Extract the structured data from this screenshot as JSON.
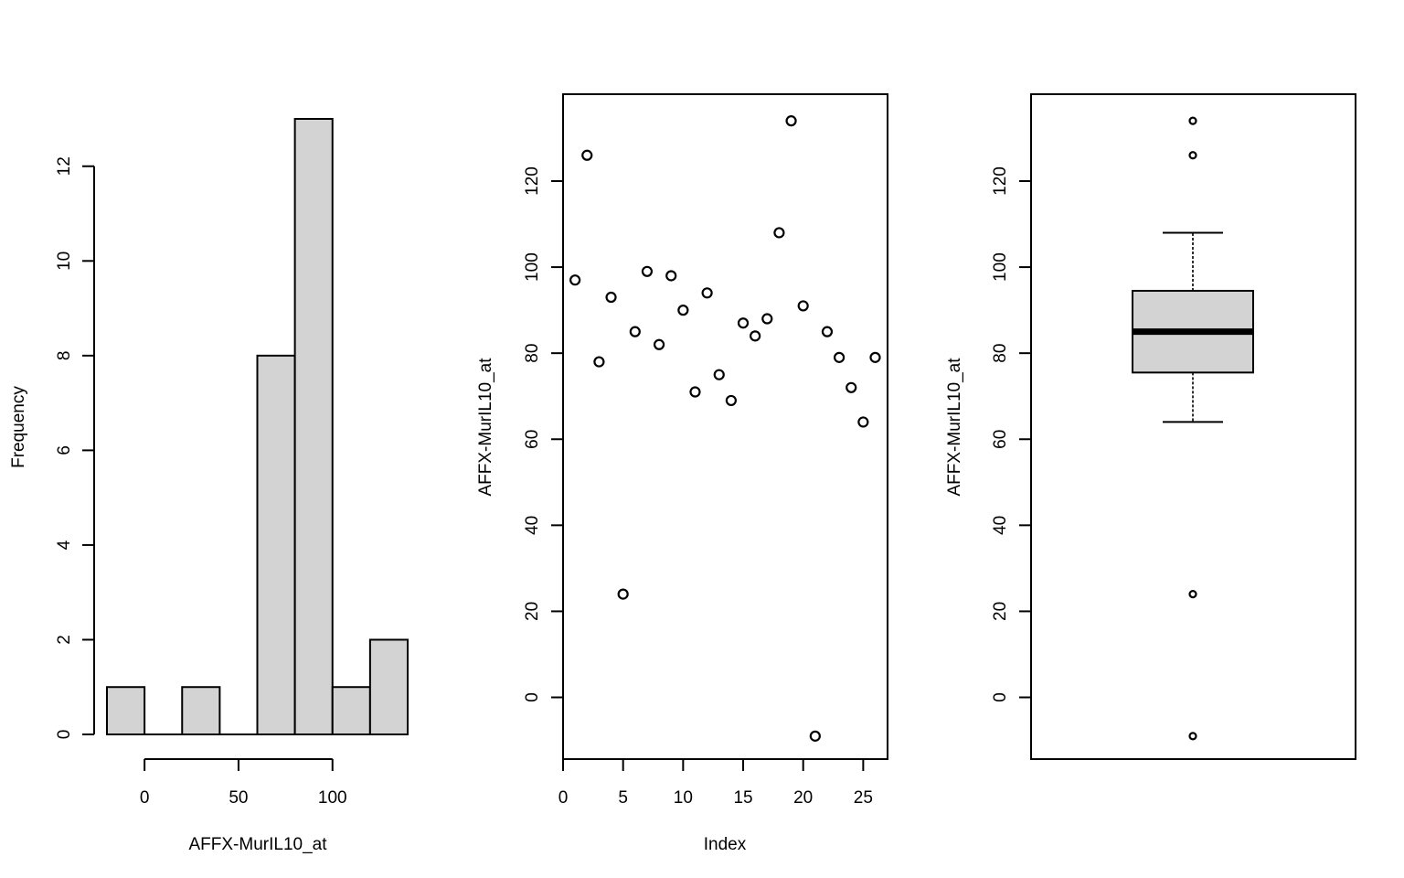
{
  "chart_data": [
    {
      "type": "bar",
      "subtype": "histogram",
      "bins": [
        {
          "start": -20,
          "end": 0,
          "count": 1
        },
        {
          "start": 0,
          "end": 20,
          "count": 0
        },
        {
          "start": 20,
          "end": 40,
          "count": 1
        },
        {
          "start": 40,
          "end": 60,
          "count": 0
        },
        {
          "start": 60,
          "end": 80,
          "count": 8
        },
        {
          "start": 80,
          "end": 100,
          "count": 13
        },
        {
          "start": 100,
          "end": 120,
          "count": 1
        },
        {
          "start": 120,
          "end": 140,
          "count": 2
        }
      ],
      "xlabel": "AFFX-MurIL10_at",
      "ylabel": "Frequency",
      "xticks": [
        0,
        50,
        100
      ],
      "yticks": [
        0,
        2,
        4,
        6,
        8,
        10,
        12
      ],
      "xlim": [
        -20,
        140
      ],
      "ylim": [
        0,
        13
      ]
    },
    {
      "type": "scatter",
      "x": [
        1,
        2,
        3,
        4,
        5,
        6,
        7,
        8,
        9,
        10,
        11,
        12,
        13,
        14,
        15,
        16,
        17,
        18,
        19,
        20,
        21,
        22,
        23,
        24,
        25,
        26
      ],
      "y": [
        97,
        126,
        78,
        93,
        24,
        85,
        99,
        82,
        98,
        90,
        71,
        94,
        75,
        69,
        87,
        84,
        88,
        108,
        134,
        91,
        -9,
        85,
        79,
        72,
        64,
        79
      ],
      "xlabel": "Index",
      "ylabel": "AFFX-MurIL10_at",
      "xticks": [
        0,
        5,
        10,
        15,
        20,
        25
      ],
      "yticks": [
        0,
        20,
        40,
        60,
        80,
        100,
        120
      ],
      "xlim": [
        0,
        27
      ],
      "ylim": [
        -15,
        140
      ]
    },
    {
      "type": "box",
      "stats": {
        "lower_whisker": 64,
        "q1": 75.5,
        "median": 85,
        "q3": 94.5,
        "upper_whisker": 108
      },
      "outliers": [
        134,
        126,
        24,
        -9
      ],
      "ylabel": "AFFX-MurIL10_at",
      "yticks": [
        0,
        20,
        40,
        60,
        80,
        100,
        120
      ],
      "ylim": [
        -15,
        140
      ]
    }
  ]
}
